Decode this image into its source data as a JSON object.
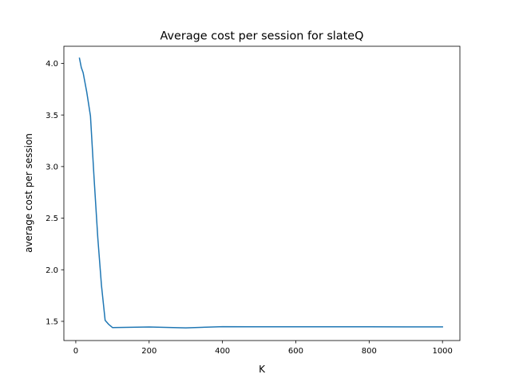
{
  "chart_data": {
    "type": "line",
    "title": "Average cost per session for slateQ",
    "xlabel": "K",
    "ylabel": "average cost per session",
    "xlim": [
      -32.5,
      1047.5
    ],
    "ylim": [
      1.314,
      4.166
    ],
    "x_ticks": [
      0,
      200,
      400,
      600,
      800,
      1000
    ],
    "x_tick_labels": [
      "0",
      "200",
      "400",
      "600",
      "800",
      "1000"
    ],
    "y_ticks": [
      1.5,
      2.0,
      2.5,
      3.0,
      3.5,
      4.0
    ],
    "y_tick_labels": [
      "1.5",
      "2.0",
      "2.5",
      "3.0",
      "3.5",
      "4.0"
    ],
    "grid": false,
    "legend": "none",
    "line_color": "#1f77b4",
    "series": [
      {
        "x": [
          10,
          15,
          20,
          30,
          40,
          50,
          60,
          70,
          80,
          90,
          100,
          200,
          300,
          400,
          500,
          600,
          700,
          800,
          900,
          1000
        ],
        "y": [
          4.05,
          3.96,
          3.91,
          3.72,
          3.49,
          2.88,
          2.31,
          1.85,
          1.51,
          1.47,
          1.44,
          1.445,
          1.437,
          1.448,
          1.447,
          1.447,
          1.447,
          1.447,
          1.446,
          1.446
        ]
      }
    ]
  }
}
